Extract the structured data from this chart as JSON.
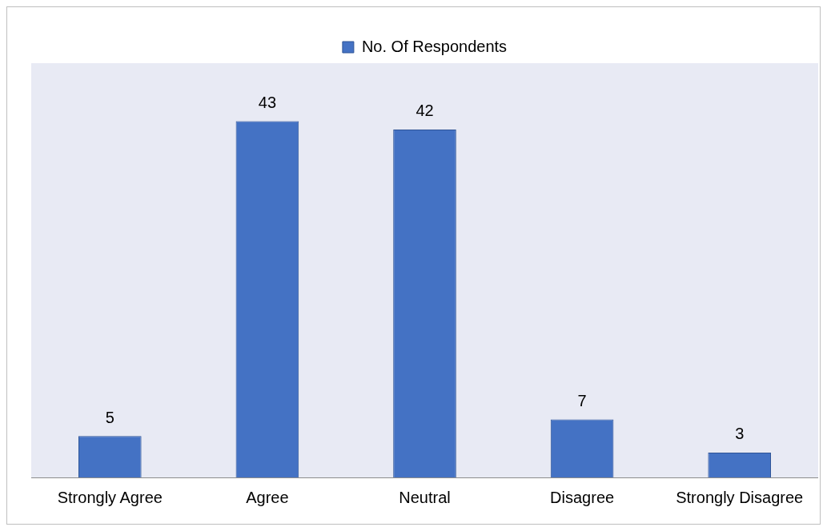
{
  "chart_data": {
    "type": "bar",
    "categories": [
      "Strongly Agree",
      "Agree",
      "Neutral",
      "Disagree",
      "Strongly Disagree"
    ],
    "series": [
      {
        "name": "No. Of Respondents",
        "color": "#4472c4",
        "values": [
          5,
          43,
          42,
          7,
          3
        ]
      }
    ],
    "ylim": [
      0,
      50
    ],
    "tick_labels": "x",
    "data_labels": true,
    "legend": "top",
    "grid": false
  }
}
